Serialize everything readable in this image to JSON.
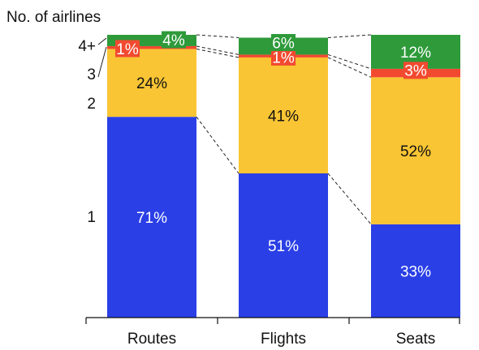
{
  "chart_data": {
    "type": "bar",
    "stacked": true,
    "title": "No. of airlines",
    "categories": [
      "Routes",
      "Flights",
      "Seats"
    ],
    "series": [
      {
        "name": "1",
        "color": "#2a3fe6",
        "values": [
          71,
          51,
          33
        ],
        "labels": [
          "71%",
          "51%",
          "33%"
        ],
        "label_color": "#ffffff"
      },
      {
        "name": "2",
        "color": "#f9c534",
        "values": [
          24,
          41,
          52
        ],
        "labels": [
          "24%",
          "41%",
          "52%"
        ],
        "label_color": "#111111"
      },
      {
        "name": "3",
        "color": "#f24a30",
        "values": [
          1,
          1,
          3
        ],
        "labels": [
          "1%",
          "1%",
          "3%"
        ],
        "label_color": "#ffffff"
      },
      {
        "name": "4+",
        "color": "#2e9a3a",
        "values": [
          4,
          6,
          12
        ],
        "labels": [
          "4%",
          "6%",
          "12%"
        ],
        "label_color": "#ffffff"
      }
    ],
    "ylim": [
      0,
      100
    ],
    "legend": "left, series names aligned to segments",
    "grid": false
  }
}
